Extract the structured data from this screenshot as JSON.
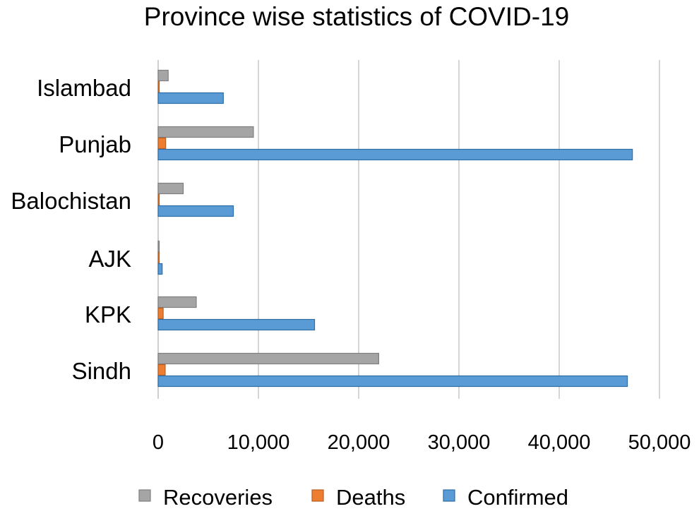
{
  "chart_data": {
    "type": "bar",
    "orientation": "horizontal",
    "title": "Province wise statistics of COVID-19",
    "xlabel": "",
    "ylabel": "",
    "categories": [
      "Islambad",
      "Punjab",
      "Balochistan",
      "AJK",
      "KPK",
      "Sindh"
    ],
    "series": [
      {
        "name": "Recoveries",
        "color": "#a5a5a5",
        "stroke": "#7f7f7f",
        "values": [
          1000,
          9500,
          2500,
          100,
          3800,
          22000
        ]
      },
      {
        "name": "Deaths",
        "color": "#ed7d31",
        "stroke": "#b85f22",
        "values": [
          80,
          750,
          80,
          5,
          500,
          700
        ]
      },
      {
        "name": "Confirmed",
        "color": "#5b9bd5",
        "stroke": "#2e6ea6",
        "values": [
          6500,
          47300,
          7500,
          400,
          15600,
          46800
        ]
      }
    ],
    "xlim": [
      0,
      50000
    ],
    "ticks": [
      0,
      10000,
      20000,
      30000,
      40000,
      50000
    ],
    "tick_labels": [
      "0",
      "10,000",
      "20,000",
      "30,000",
      "40,000",
      "50,000"
    ],
    "grid": true,
    "legend": "bottom"
  }
}
